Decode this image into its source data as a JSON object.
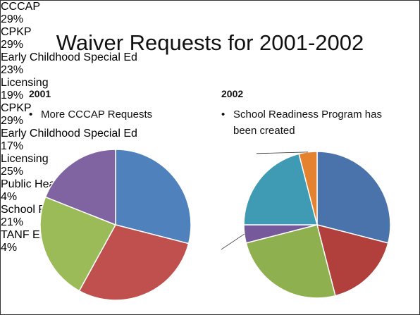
{
  "slide": {
    "title": "Waiver Requests for 2001-2002"
  },
  "chart_data": [
    {
      "type": "pie",
      "title": "2001",
      "annotation": "More CCCAP Requests",
      "categories": [
        "CCCAP",
        "CPKP",
        "Early Childhood Special Ed",
        "Licensing"
      ],
      "values": [
        29,
        29,
        23,
        19
      ],
      "value_labels": [
        "29%",
        "29%",
        "23%",
        "19%"
      ],
      "colors": [
        "#4f81bd",
        "#c0504d",
        "#9bbb59",
        "#8064a2"
      ]
    },
    {
      "type": "pie",
      "title": "2002",
      "annotation": "School Readiness Program has been created",
      "categories": [
        "CPKP",
        "Early Childhood Special Ed",
        "Licensing",
        "Public Health",
        "School Readiness",
        "TANF Eligibility"
      ],
      "values": [
        29,
        17,
        25,
        4,
        21,
        4
      ],
      "value_labels": [
        "29%",
        "17%",
        "25%",
        "4%",
        "21%",
        "4%"
      ],
      "colors": [
        "#4a72ab",
        "#b1403d",
        "#8fb04f",
        "#76599a",
        "#3f9ab3",
        "#e4822f"
      ]
    }
  ]
}
